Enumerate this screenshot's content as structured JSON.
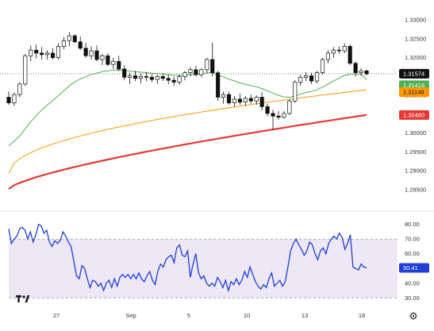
{
  "chart_data": [
    {
      "type": "candlestick",
      "title": "",
      "x_tick_labels": [
        "27",
        "Sep",
        "5",
        "10",
        "13",
        "18"
      ],
      "y_ticks": [
        "1.33000",
        "1.32500",
        "1.32000",
        "1.31500",
        "1.31000",
        "1.30500",
        "1.30000",
        "1.29500",
        "1.29000",
        "1.28500"
      ],
      "ylim": [
        1.2835,
        1.3315
      ],
      "price_labels": [
        {
          "name": "last",
          "text": "1.31574",
          "value": 1.31574,
          "bg": "#111111",
          "fg": "#ffffff"
        },
        {
          "name": "ma-green",
          "text": "1.31416",
          "value": 1.31416,
          "bg": "#4caf50",
          "fg": "#ffffff"
        },
        {
          "name": "ma-orange",
          "text": "1.31148",
          "value": 1.31148,
          "bg": "#ff9800",
          "fg": "#111111"
        },
        {
          "name": "ma-red",
          "text": "1.30480",
          "value": 1.3048,
          "bg": "#e53935",
          "fg": "#ffffff"
        }
      ],
      "ohlc": [
        [
          1.3095,
          1.311,
          1.3075,
          1.308
        ],
        [
          1.308,
          1.3108,
          1.3072,
          1.3102
        ],
        [
          1.3102,
          1.3135,
          1.3095,
          1.313
        ],
        [
          1.313,
          1.321,
          1.3125,
          1.3205
        ],
        [
          1.3205,
          1.3232,
          1.319,
          1.322
        ],
        [
          1.322,
          1.3235,
          1.3198,
          1.3212
        ],
        [
          1.3212,
          1.3228,
          1.3195,
          1.3208
        ],
        [
          1.3208,
          1.322,
          1.3195,
          1.3212
        ],
        [
          1.3212,
          1.3225,
          1.3195,
          1.32
        ],
        [
          1.32,
          1.3238,
          1.3195,
          1.323
        ],
        [
          1.323,
          1.3255,
          1.3222,
          1.3245
        ],
        [
          1.3245,
          1.3268,
          1.323,
          1.3258
        ],
        [
          1.3258,
          1.3262,
          1.3238,
          1.3242
        ],
        [
          1.3242,
          1.3256,
          1.322,
          1.3225
        ],
        [
          1.3225,
          1.324,
          1.32,
          1.3205
        ],
        [
          1.3205,
          1.323,
          1.3195,
          1.3218
        ],
        [
          1.3218,
          1.3232,
          1.319,
          1.3195
        ],
        [
          1.3195,
          1.321,
          1.318,
          1.3205
        ],
        [
          1.3205,
          1.3212,
          1.3178,
          1.3182
        ],
        [
          1.3182,
          1.32,
          1.317,
          1.319
        ],
        [
          1.319,
          1.3205,
          1.3165,
          1.317
        ],
        [
          1.317,
          1.318,
          1.314,
          1.3148
        ],
        [
          1.3148,
          1.316,
          1.313,
          1.3152
        ],
        [
          1.3152,
          1.3165,
          1.3138,
          1.3145
        ],
        [
          1.3145,
          1.3158,
          1.3132,
          1.315
        ],
        [
          1.315,
          1.3162,
          1.3138,
          1.3148
        ],
        [
          1.3148,
          1.3156,
          1.3135,
          1.3142
        ],
        [
          1.3142,
          1.3155,
          1.313,
          1.315
        ],
        [
          1.315,
          1.3158,
          1.3138,
          1.3145
        ],
        [
          1.3145,
          1.3155,
          1.313,
          1.314
        ],
        [
          1.314,
          1.315,
          1.3125,
          1.3135
        ],
        [
          1.3135,
          1.3155,
          1.3128,
          1.315
        ],
        [
          1.315,
          1.3165,
          1.314,
          1.316
        ],
        [
          1.316,
          1.3175,
          1.315,
          1.3168
        ],
        [
          1.3168,
          1.3178,
          1.315,
          1.3155
        ],
        [
          1.3155,
          1.3172,
          1.3148,
          1.3168
        ],
        [
          1.3168,
          1.32,
          1.316,
          1.3195
        ],
        [
          1.3195,
          1.324,
          1.315,
          1.316
        ],
        [
          1.316,
          1.3165,
          1.3085,
          1.3095
        ],
        [
          1.3095,
          1.311,
          1.3078,
          1.3102
        ],
        [
          1.3102,
          1.311,
          1.3075,
          1.308
        ],
        [
          1.308,
          1.3098,
          1.307,
          1.309
        ],
        [
          1.309,
          1.3105,
          1.3075,
          1.3082
        ],
        [
          1.3082,
          1.3098,
          1.3072,
          1.3092
        ],
        [
          1.3092,
          1.3102,
          1.3078,
          1.3085
        ],
        [
          1.3085,
          1.31,
          1.3075,
          1.3095
        ],
        [
          1.3095,
          1.3108,
          1.306,
          1.307
        ],
        [
          1.307,
          1.3078,
          1.3045,
          1.3052
        ],
        [
          1.3052,
          1.3062,
          1.3008,
          1.3045
        ],
        [
          1.3045,
          1.3058,
          1.3035,
          1.3042
        ],
        [
          1.3042,
          1.3058,
          1.3038,
          1.3052
        ],
        [
          1.3052,
          1.309,
          1.3048,
          1.3085
        ],
        [
          1.3085,
          1.314,
          1.308,
          1.3135
        ],
        [
          1.3135,
          1.3155,
          1.3125,
          1.3148
        ],
        [
          1.3148,
          1.3162,
          1.3138,
          1.3152
        ],
        [
          1.3152,
          1.316,
          1.313,
          1.3138
        ],
        [
          1.3138,
          1.3165,
          1.3132,
          1.316
        ],
        [
          1.316,
          1.32,
          1.3155,
          1.3195
        ],
        [
          1.3195,
          1.322,
          1.3185,
          1.3212
        ],
        [
          1.3212,
          1.3228,
          1.32,
          1.322
        ],
        [
          1.322,
          1.323,
          1.321,
          1.3218
        ],
        [
          1.3218,
          1.3238,
          1.3212,
          1.323
        ],
        [
          1.323,
          1.3235,
          1.318,
          1.3185
        ],
        [
          1.3185,
          1.319,
          1.315,
          1.316
        ],
        [
          1.316,
          1.3172,
          1.3152,
          1.3165
        ],
        [
          1.3165,
          1.3168,
          1.3152,
          1.3157
        ]
      ]
    },
    {
      "type": "line",
      "title": "",
      "y_ticks": [
        "80.00",
        "70.00",
        "60.00",
        "50.00",
        "40.00",
        "30.00"
      ],
      "ylim": [
        28,
        82
      ],
      "band": [
        30,
        70
      ],
      "current_label": "50.41",
      "current_value": 50.41,
      "series_color": "#1f3fd6",
      "values": [
        77,
        67,
        70,
        72,
        77,
        78,
        76,
        70,
        75,
        68,
        73,
        80,
        79,
        74,
        76,
        68,
        65,
        69,
        67,
        69,
        75,
        72,
        68,
        65,
        55,
        45,
        43,
        52,
        50,
        43,
        37,
        42,
        41,
        38,
        40,
        35,
        40,
        42,
        37,
        43,
        38,
        44,
        46,
        44,
        46,
        43,
        46,
        43,
        47,
        43,
        41,
        45,
        48,
        42,
        39,
        48,
        53,
        51,
        56,
        58,
        59,
        54,
        64,
        66,
        59,
        58,
        62,
        44,
        53,
        60,
        47,
        43,
        45,
        40,
        38,
        40,
        38,
        44,
        41,
        37,
        42,
        35,
        41,
        39,
        43,
        39,
        42,
        48,
        44,
        51,
        46,
        41,
        38,
        36,
        39,
        37,
        43,
        47,
        38,
        40,
        42,
        38,
        41,
        51,
        62,
        67,
        70,
        66,
        63,
        59,
        62,
        68,
        66,
        60,
        56,
        62,
        64,
        60,
        67,
        70,
        72,
        70,
        74,
        71,
        63,
        67,
        73,
        51,
        50,
        49,
        53,
        51,
        50.41
      ]
    }
  ]
}
